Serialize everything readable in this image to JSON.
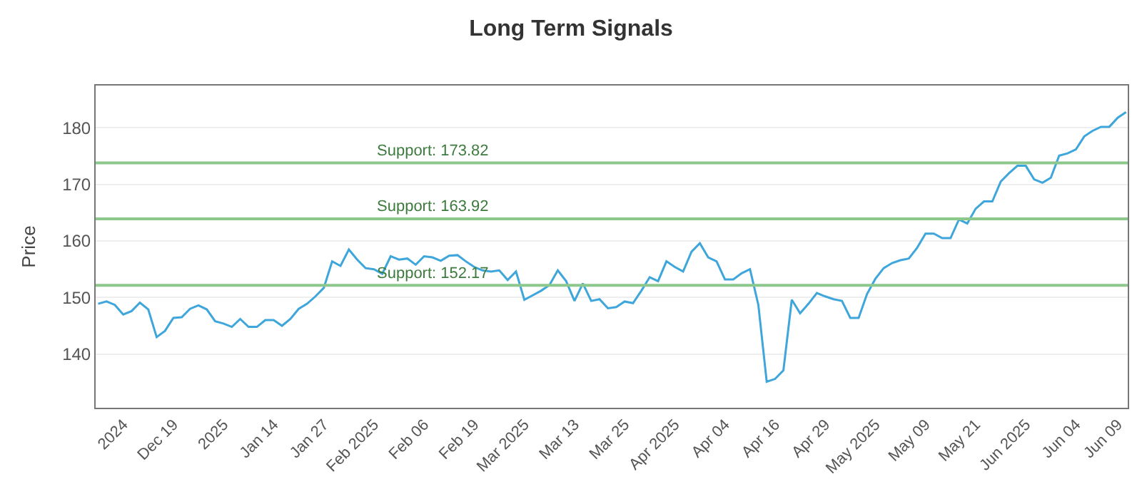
{
  "chart_data": {
    "type": "line",
    "title": "Long Term Signals",
    "ylabel": "Price",
    "categories": [
      null,
      null,
      null,
      "2024",
      null,
      null,
      null,
      null,
      null,
      "Dec 19",
      null,
      null,
      null,
      null,
      null,
      "2025",
      null,
      null,
      null,
      null,
      null,
      "Jan 14",
      null,
      null,
      null,
      null,
      null,
      "Jan 27",
      null,
      null,
      null,
      null,
      null,
      "Feb 2025",
      null,
      null,
      null,
      null,
      null,
      "Feb 06",
      null,
      null,
      null,
      null,
      null,
      "Feb 19",
      null,
      null,
      null,
      null,
      null,
      "Mar 2025",
      null,
      null,
      null,
      null,
      null,
      "Mar 13",
      null,
      null,
      null,
      null,
      null,
      "Mar 25",
      null,
      null,
      null,
      null,
      null,
      "Apr 2025",
      null,
      null,
      null,
      null,
      null,
      "Apr 04",
      null,
      null,
      null,
      null,
      null,
      "Apr 16",
      null,
      null,
      null,
      null,
      null,
      "Apr 29",
      null,
      null,
      null,
      null,
      null,
      "May 2025",
      null,
      null,
      null,
      null,
      null,
      "May 09",
      null,
      null,
      null,
      null,
      null,
      "May 21",
      null,
      null,
      null,
      null,
      null,
      "Jun 2025",
      null,
      null,
      null,
      null,
      null,
      "Jun 04",
      null,
      null,
      null,
      null,
      "Jun 09",
      null
    ],
    "series": [
      {
        "color": "#3ea6db",
        "values": [
          148.9,
          149.3,
          148.7,
          147.0,
          147.6,
          149.1,
          147.9,
          143.0,
          144.1,
          146.4,
          146.5,
          148.0,
          148.6,
          147.9,
          145.8,
          145.4,
          144.8,
          146.2,
          144.8,
          144.8,
          146.0,
          146.0,
          145.0,
          146.2,
          148.0,
          148.9,
          150.2,
          151.7,
          156.4,
          155.6,
          158.5,
          156.7,
          155.2,
          155.0,
          154.2,
          157.3,
          156.7,
          156.9,
          155.8,
          157.3,
          157.1,
          156.5,
          157.4,
          157.5,
          156.4,
          155.4,
          154.8,
          154.6,
          154.8,
          153.1,
          154.6,
          149.6,
          150.4,
          151.2,
          152.2,
          154.8,
          152.9,
          149.4,
          152.5,
          149.4,
          149.7,
          148.1,
          148.3,
          149.3,
          149.0,
          151.2,
          153.6,
          152.9,
          156.4,
          155.4,
          154.6,
          158.1,
          159.6,
          157.1,
          156.4,
          153.2,
          153.2,
          154.3,
          155.0,
          148.7,
          135.1,
          135.6,
          137.1,
          149.6,
          147.2,
          148.9,
          150.8,
          150.2,
          149.7,
          149.4,
          146.4,
          146.4,
          150.6,
          153.3,
          155.2,
          156.1,
          156.6,
          156.9,
          158.8,
          161.3,
          161.3,
          160.5,
          160.5,
          163.8,
          163.1,
          165.7,
          167.0,
          167.0,
          170.5,
          172.0,
          173.3,
          173.3,
          170.9,
          170.3,
          171.2,
          175.1,
          175.5,
          176.2,
          178.5,
          179.5,
          180.2,
          180.2,
          181.8,
          182.8
        ]
      }
    ],
    "ylim": [
      130.5,
      187.5
    ],
    "yticks": [
      140,
      150,
      160,
      170,
      180
    ],
    "grid": "y",
    "marker": "none",
    "line_style": "solid",
    "ref_lines": [
      {
        "axis": "y",
        "value": 173.82,
        "label": "Support: 173.82",
        "color": "#8cc88c"
      },
      {
        "axis": "y",
        "value": 163.92,
        "label": "Support: 163.92",
        "color": "#8cc88c"
      },
      {
        "axis": "y",
        "value": 152.17,
        "label": "Support: 152.17",
        "color": "#8cc88c"
      }
    ]
  }
}
